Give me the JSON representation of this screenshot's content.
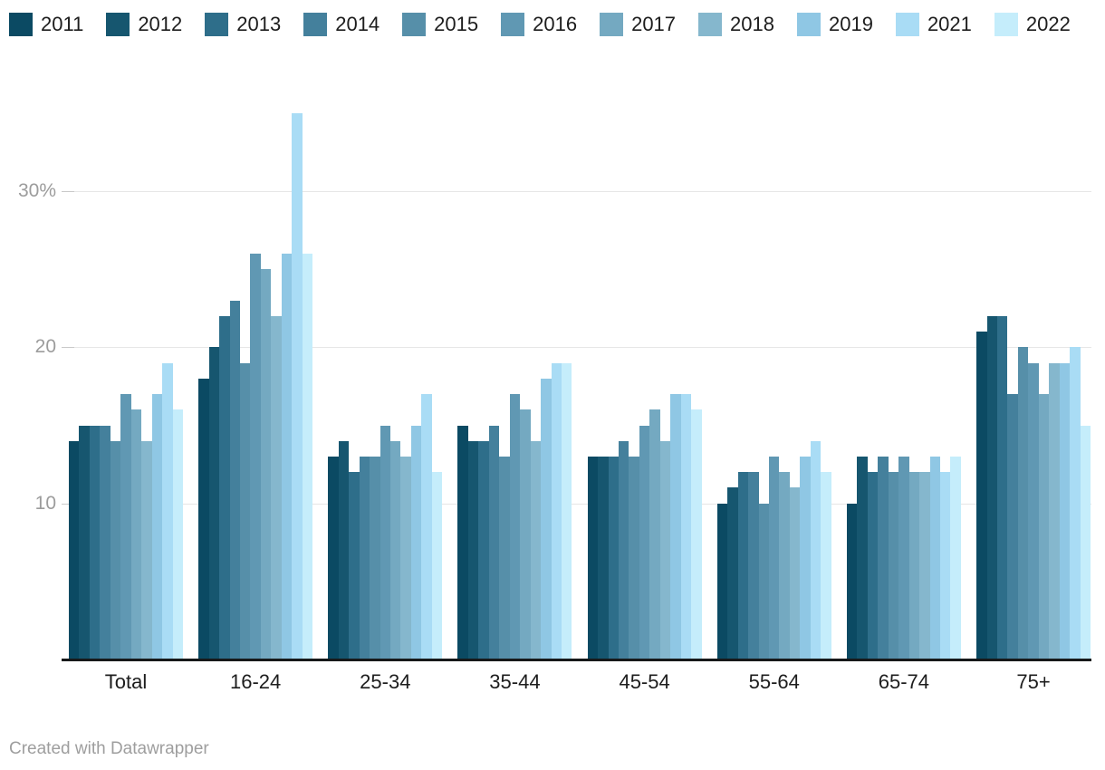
{
  "chart_data": {
    "type": "bar",
    "title": "",
    "xlabel": "",
    "ylabel": "",
    "categories": [
      "Total",
      "16-24",
      "25-34",
      "35-44",
      "45-54",
      "55-64",
      "65-74",
      "75+"
    ],
    "series": [
      {
        "name": "2011",
        "color": "#0b4a63",
        "values": [
          14,
          18,
          13,
          15,
          13,
          10,
          10,
          21
        ]
      },
      {
        "name": "2012",
        "color": "#16566f",
        "values": [
          15,
          20,
          14,
          14,
          13,
          11,
          13,
          22
        ]
      },
      {
        "name": "2013",
        "color": "#2e6e8a",
        "values": [
          15,
          22,
          12,
          14,
          13,
          12,
          12,
          22
        ]
      },
      {
        "name": "2014",
        "color": "#44809c",
        "values": [
          15,
          23,
          13,
          15,
          14,
          12,
          13,
          17
        ]
      },
      {
        "name": "2015",
        "color": "#568fa9",
        "values": [
          14,
          19,
          13,
          13,
          13,
          10,
          12,
          20
        ]
      },
      {
        "name": "2016",
        "color": "#6098b3",
        "values": [
          17,
          26,
          15,
          17,
          15,
          13,
          13,
          19
        ]
      },
      {
        "name": "2017",
        "color": "#74a9c1",
        "values": [
          16,
          25,
          14,
          16,
          16,
          12,
          12,
          17
        ]
      },
      {
        "name": "2018",
        "color": "#85b7cd",
        "values": [
          14,
          22,
          13,
          14,
          14,
          11,
          12,
          19
        ]
      },
      {
        "name": "2019",
        "color": "#8fc7e4",
        "values": [
          17,
          26,
          15,
          18,
          17,
          13,
          13,
          19
        ]
      },
      {
        "name": "2021",
        "color": "#a9dcf5",
        "values": [
          19,
          35,
          17,
          19,
          17,
          14,
          12,
          20
        ]
      },
      {
        "name": "2022",
        "color": "#c5edfb",
        "values": [
          16,
          26,
          12,
          19,
          16,
          12,
          13,
          15
        ]
      }
    ],
    "yticks": [
      {
        "value": 10,
        "label": "10"
      },
      {
        "value": 20,
        "label": "20"
      },
      {
        "value": 30,
        "label": "30%"
      }
    ],
    "ylim": [
      0,
      37
    ],
    "grid": "horizontal",
    "legend_position": "top"
  },
  "footer": {
    "credit": "Created with Datawrapper"
  }
}
